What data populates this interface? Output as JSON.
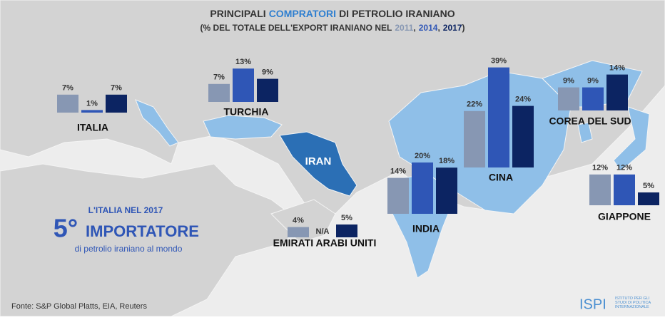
{
  "chart_data": {
    "type": "bar",
    "title": {
      "plain": "PRINCIPALI",
      "highlight": "COMPRATORI",
      "rest": "DI PETROLIO IRANIANO"
    },
    "subtitle": {
      "text": "(% DEL TOTALE DELL'EXPORT IRANIANO NEL",
      "separator": ",",
      "close": ")"
    },
    "categories": [
      "ITALIA",
      "TURCHIA",
      "CINA",
      "COREA DEL SUD",
      "INDIA",
      "GIAPPONE",
      "EMIRATI ARABI UNITI"
    ],
    "series": [
      {
        "name": "2011",
        "color": "#8797b3",
        "values": [
          7,
          7,
          22,
          9,
          14,
          12,
          4
        ],
        "value_labels": [
          "7%",
          "7%",
          "22%",
          "9%",
          "14%",
          "12%",
          "4%"
        ]
      },
      {
        "name": "2014",
        "color": "#2f56b6",
        "values": [
          1,
          13,
          39,
          9,
          20,
          12,
          null
        ],
        "value_labels": [
          "1%",
          "13%",
          "39%",
          "9%",
          "20%",
          "12%",
          "N/A"
        ]
      },
      {
        "name": "2017",
        "color": "#0c2462",
        "values": [
          7,
          9,
          24,
          14,
          18,
          5,
          5
        ],
        "value_labels": [
          "7%",
          "9%",
          "24%",
          "14%",
          "18%",
          "5%",
          "5%"
        ]
      }
    ],
    "highlight_country": "IRAN",
    "callout": {
      "heading": "L'ITALIA NEL 2017",
      "rank": "5°",
      "headline": "IMPORTATORE",
      "text": "di petrolio iraniano al mondo"
    },
    "source": "Fonte: S&P Global Platts, EIA, Reuters",
    "logo": {
      "name": "ISPI",
      "text": "ISTITUTO PER GLI STUDI DI POLITICA INTERNAZIONALE"
    }
  }
}
